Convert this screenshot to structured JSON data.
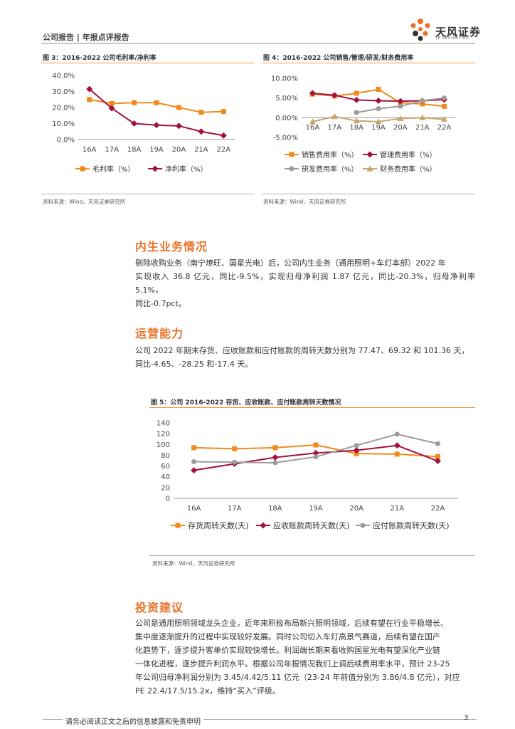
{
  "header": {
    "left": "公司报告 | 年报点评报告",
    "logo_text": "天风证券",
    "logo_sub": "TF SECURITIES"
  },
  "figure3": {
    "title": "图 3：2016-2022 公司毛利率/净利率",
    "source": "资料来源：Wind，天风证券研究所",
    "chart_data": {
      "type": "line",
      "categories": [
        "16A",
        "17A",
        "18A",
        "19A",
        "20A",
        "21A",
        "22A"
      ],
      "y_ticks": [
        "0.0%",
        "10.0%",
        "20.0%",
        "30.0%",
        "40.0%"
      ],
      "ylim": [
        0,
        40
      ],
      "series": [
        {
          "name": "毛利率（%）",
          "color": "#f08a1c",
          "marker": "square",
          "values": [
            25.0,
            22.5,
            23.0,
            23.0,
            20.0,
            17.0,
            17.5
          ]
        },
        {
          "name": "净利率（%）",
          "color": "#a3123f",
          "marker": "diamond",
          "values": [
            31.5,
            19.5,
            10.0,
            9.0,
            8.5,
            5.0,
            2.5
          ]
        }
      ]
    }
  },
  "figure4": {
    "title": "图 4：2016-2022 公司销售/管理/研发/财务费用率",
    "source": "资料来源：Wind，天风证券研究所",
    "chart_data": {
      "type": "line",
      "categories": [
        "16A",
        "17A",
        "18A",
        "19A",
        "20A",
        "21A",
        "22A"
      ],
      "y_ticks": [
        "-5.00%",
        "0.00%",
        "5.00%",
        "10.00%"
      ],
      "ylim": [
        -5,
        10
      ],
      "series": [
        {
          "name": "销售费用率（%）",
          "color": "#f08a1c",
          "marker": "square",
          "values": [
            6.0,
            5.5,
            6.2,
            7.2,
            3.8,
            3.5,
            2.9
          ]
        },
        {
          "name": "管理费用率（%）",
          "color": "#a3123f",
          "marker": "diamond",
          "values": [
            6.2,
            5.7,
            4.5,
            4.3,
            4.2,
            4.3,
            4.6
          ]
        },
        {
          "name": "研发费用率（%）",
          "color": "#9b9b9b",
          "marker": "circle",
          "values": [
            null,
            null,
            1.3,
            2.3,
            2.9,
            4.3,
            5.0
          ]
        },
        {
          "name": "财务费用率（%）",
          "color": "#c8a56a",
          "marker": "triangle",
          "values": [
            -1.0,
            0.3,
            -0.8,
            -1.0,
            -0.2,
            0.0,
            -0.4
          ]
        }
      ]
    }
  },
  "section1": {
    "title": "内生业务情况",
    "lines": [
      "剔除收购业务（南宁燎旺、国星光电）后，公司内生业务（通用照明+车灯本部）2022 年",
      "实现收入 36.8 亿元，同比-9.5%，实现归母净利润 1.87 亿元，同比-20.3%，归母净利率 5.1%，",
      "同比-0.7pct。"
    ]
  },
  "section2": {
    "title": "运营能力",
    "lines": [
      "公司 2022 年期末存货、应收账款和应付账款的周转天数分别为 77.47、69.32 和 101.36 天，",
      "同比-4.65、-28.25 和-17.4 天。"
    ]
  },
  "figure5": {
    "title": "图 5：公司 2016-2022 存货、应收账款、应付账款周转天数情况",
    "source": "资料来源：Wind，天风证券研究所",
    "chart_data": {
      "type": "line",
      "categories": [
        "16A",
        "17A",
        "18A",
        "19A",
        "20A",
        "21A",
        "22A"
      ],
      "y_ticks": [
        "0",
        "20",
        "40",
        "60",
        "80",
        "100",
        "120",
        "140"
      ],
      "ylim": [
        0,
        140
      ],
      "series": [
        {
          "name": "存货周转天数(天)",
          "color": "#f08a1c",
          "marker": "square",
          "values": [
            94,
            92,
            94,
            99,
            83,
            82,
            77.47
          ]
        },
        {
          "name": "应收账款周转天数(天)",
          "color": "#a3123f",
          "marker": "diamond",
          "values": [
            52,
            64,
            76,
            84,
            89,
            98,
            69.32
          ]
        },
        {
          "name": "应付账款周转天数(天)",
          "color": "#9b9b9b",
          "marker": "circle",
          "values": [
            68,
            67,
            66,
            77,
            98,
            119,
            101.36
          ]
        }
      ]
    }
  },
  "section3": {
    "title": "投资建议",
    "lines": [
      "公司是通用照明领域龙头企业，近年来积极布局新兴照明领域，后续有望在行业平稳增长、",
      "集中度逐渐提升的过程中实现较好发展。同时公司切入车灯高景气赛道，后续有望在国产",
      "化趋势下，逐步提升客单价实现较快增长。利润端长期来看收购国星光电有望深化产业链",
      "一体化进程，逐步提升利润水平。根据公司年报情况我们上调后续费用率水平，预计 23-25",
      "年公司归母净利润分别为 3.45/4.42/5.11 亿元（23-24 年前值分别为 3.86/4.8 亿元），对应",
      "PE 22.4/17.5/15.2x，维持“买入”评级。"
    ]
  },
  "footer": {
    "disclaimer": "请务必阅读正文之后的信息披露和免责申明",
    "page": "3"
  }
}
